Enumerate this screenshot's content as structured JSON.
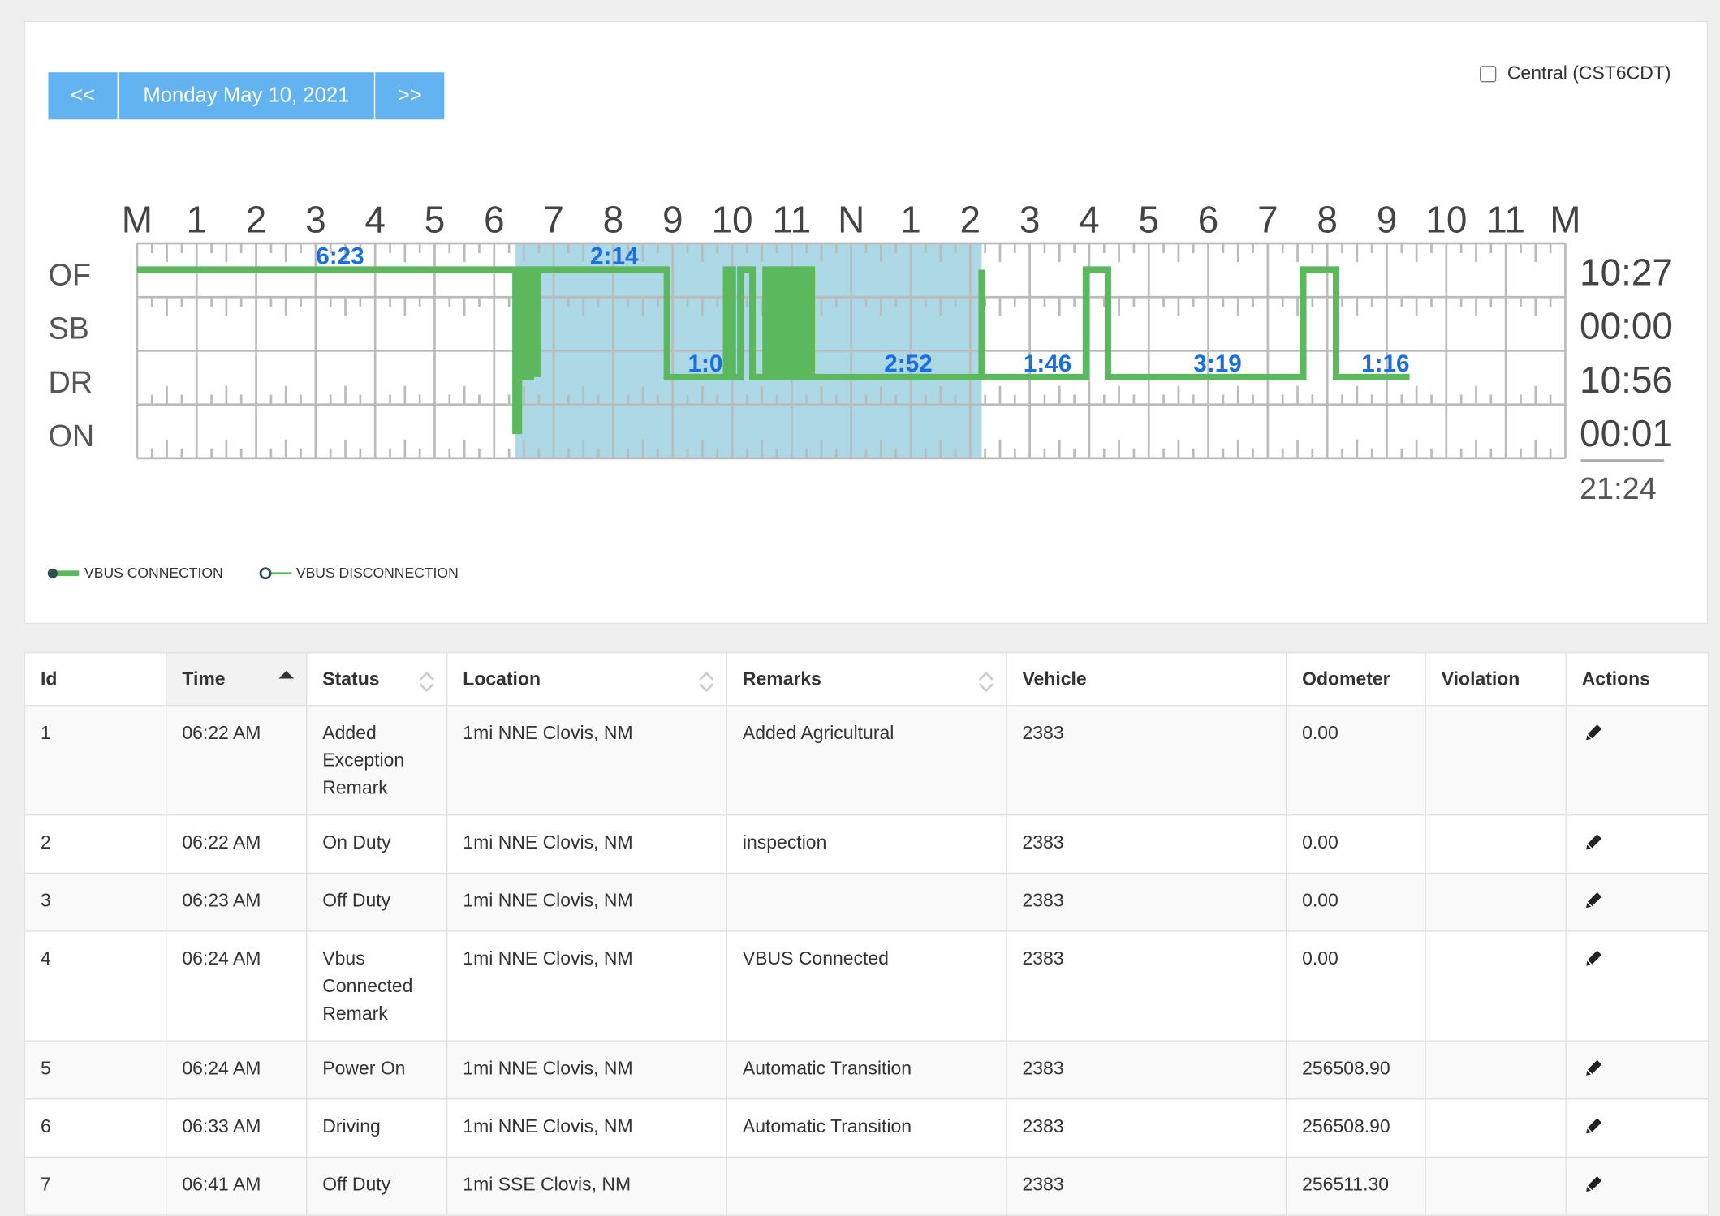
{
  "nav": {
    "prev": "<<",
    "date": "Monday May 10, 2021",
    "next": ">>"
  },
  "timezone": {
    "label": "Central (CST6CDT)"
  },
  "graph": {
    "hours": [
      "M",
      "1",
      "2",
      "3",
      "4",
      "5",
      "6",
      "7",
      "8",
      "9",
      "10",
      "11",
      "N",
      "1",
      "2",
      "3",
      "4",
      "5",
      "6",
      "7",
      "8",
      "9",
      "10",
      "11",
      "M"
    ],
    "rows": [
      "OF",
      "SB",
      "DR",
      "ON"
    ],
    "totals": [
      "10:27",
      "00:00",
      "10:56",
      "00:01"
    ],
    "grand_total": "21:24",
    "durations": [
      "6:23",
      "2:14",
      "1:0",
      "2:52",
      "1:46",
      "3:19",
      "1:16"
    ]
  },
  "legend": [
    "VBUS CONNECTION",
    "VBUS DISCONNECTION"
  ],
  "table": {
    "headers": [
      "Id",
      "Time",
      "Status",
      "Location",
      "Remarks",
      "Vehicle",
      "Odometer",
      "Violation",
      "Actions"
    ],
    "rows": [
      [
        "1",
        "06:22 AM",
        "Added Exception Remark",
        "1mi NNE Clovis, NM",
        "Added Agricultural",
        "2383",
        "0.00",
        null
      ],
      [
        "2",
        "06:22 AM",
        "On Duty",
        "1mi NNE Clovis, NM",
        "inspection",
        "2383",
        "0.00",
        null
      ],
      [
        "3",
        "06:23 AM",
        "Off Duty",
        "1mi NNE Clovis, NM",
        null,
        "2383",
        "0.00",
        null
      ],
      [
        "4",
        "06:24 AM",
        "Vbus Connected Remark",
        "1mi NNE Clovis, NM",
        "VBUS Connected",
        "2383",
        "0.00",
        null
      ],
      [
        "5",
        "06:24 AM",
        "Power On",
        "1mi NNE Clovis, NM",
        "Automatic Transition",
        "2383",
        "256508.90",
        null
      ],
      [
        "6",
        "06:33 AM",
        "Driving",
        "1mi NNE Clovis, NM",
        "Automatic Transition",
        "2383",
        "256508.90",
        null
      ],
      [
        "7",
        "06:41 AM",
        "Off Duty",
        "1mi SSE Clovis, NM",
        null,
        "2383",
        "256511.30",
        null
      ]
    ]
  }
}
